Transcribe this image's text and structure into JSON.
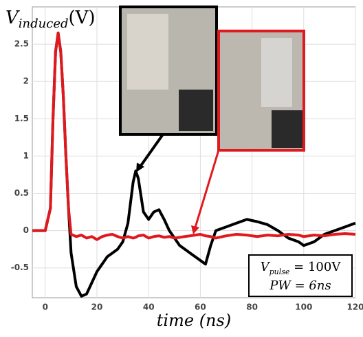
{
  "chart_data": {
    "type": "line",
    "ylabel": [
      "V",
      "induced",
      "(V)"
    ],
    "xlabel": "time (ns)",
    "annotation": [
      [
        "V",
        "pulse",
        " = 100V"
      ],
      [
        "PW = 6ns"
      ]
    ],
    "x": [
      -5,
      -2,
      0,
      2,
      3,
      4,
      5,
      6,
      7,
      8,
      9,
      10,
      12,
      14,
      16,
      18,
      20,
      22,
      24,
      26,
      28,
      30,
      32,
      34,
      35,
      36,
      38,
      40,
      42,
      44,
      46,
      48,
      50,
      52,
      54,
      56,
      58,
      60,
      62,
      64,
      66,
      70,
      74,
      78,
      82,
      86,
      90,
      94,
      98,
      100,
      104,
      108,
      112,
      116,
      120
    ],
    "series": [
      {
        "color": "#000000",
        "values": [
          0,
          0,
          0,
          0.3,
          1.5,
          2.4,
          2.65,
          2.4,
          1.8,
          1.0,
          0.3,
          -0.3,
          -0.75,
          -0.88,
          -0.85,
          -0.7,
          -0.55,
          -0.45,
          -0.35,
          -0.3,
          -0.25,
          -0.15,
          0.1,
          0.65,
          0.8,
          0.7,
          0.25,
          0.15,
          0.25,
          0.28,
          0.15,
          0.0,
          -0.1,
          -0.2,
          -0.25,
          -0.3,
          -0.35,
          -0.4,
          -0.45,
          -0.2,
          0.0,
          0.05,
          0.1,
          0.15,
          0.12,
          0.08,
          0.0,
          -0.1,
          -0.15,
          -0.2,
          -0.15,
          -0.05,
          0.0,
          0.05,
          0.1
        ]
      },
      {
        "color": "#e0191e",
        "values": [
          0,
          0,
          0,
          0.3,
          1.5,
          2.4,
          2.65,
          2.4,
          1.8,
          1.0,
          0.3,
          -0.05,
          -0.08,
          -0.06,
          -0.1,
          -0.08,
          -0.12,
          -0.08,
          -0.06,
          -0.05,
          -0.08,
          -0.1,
          -0.08,
          -0.1,
          -0.09,
          -0.07,
          -0.06,
          -0.1,
          -0.08,
          -0.07,
          -0.09,
          -0.08,
          -0.1,
          -0.09,
          -0.08,
          -0.07,
          -0.06,
          -0.05,
          -0.07,
          -0.08,
          -0.1,
          -0.07,
          -0.05,
          -0.06,
          -0.08,
          -0.06,
          -0.07,
          -0.05,
          -0.06,
          -0.08,
          -0.06,
          -0.07,
          -0.05,
          -0.04,
          -0.05
        ]
      }
    ],
    "xlim": [
      -5,
      120
    ],
    "xticks": [
      0,
      20,
      40,
      60,
      80,
      100,
      120
    ],
    "ylim": [
      -0.9,
      3
    ],
    "yticks": [
      -0.5,
      0,
      0.5,
      1,
      1.5,
      2,
      2.5
    ],
    "grid": true
  }
}
